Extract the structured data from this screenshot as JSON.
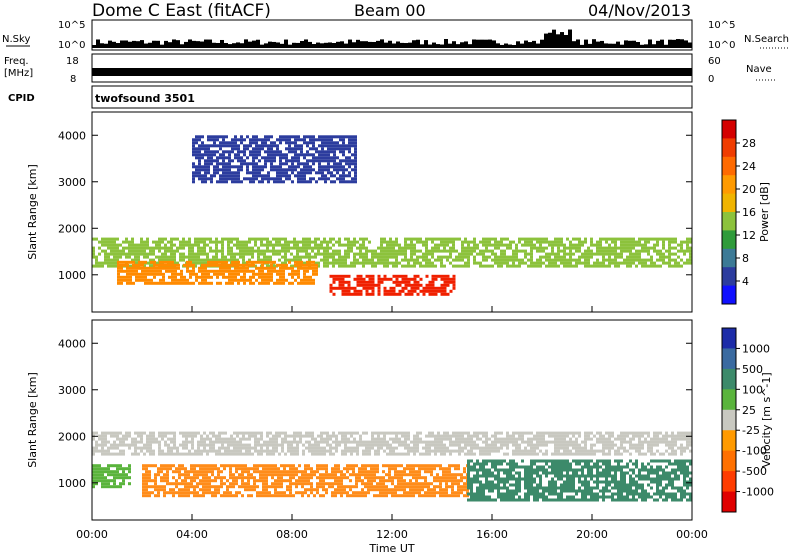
{
  "header": {
    "station": "Dome C East (fitACF)",
    "beam": "Beam 00",
    "date": "04/Nov/2013"
  },
  "panels": {
    "nsky": {
      "label": "N.Sky",
      "ticks": [
        "10^5",
        "10^0"
      ],
      "right_label": "N.Search",
      "right_ticks": [
        "10^5",
        "10^0"
      ]
    },
    "freq": {
      "label": "Freq.",
      "unit": "[MHz]",
      "ticks": [
        "18",
        "8"
      ],
      "right_label": "Nave",
      "right_ticks": [
        "60",
        "0"
      ]
    },
    "cpid": {
      "label": "CPID",
      "text": "twofsound 3501"
    }
  },
  "chart_data": [
    {
      "type": "heatmap",
      "title": "",
      "xlabel": "",
      "ylabel": "Slant Range [km]",
      "xlim": [
        "00:00",
        "24:00"
      ],
      "ylim": [
        200,
        4500
      ],
      "yticks": [
        1000,
        2000,
        3000,
        4000
      ],
      "colorbar": {
        "label": "Power [dB]",
        "ticks": [
          "28",
          "24",
          "20",
          "16",
          "12",
          "8",
          "4"
        ],
        "colors": [
          "#d40000",
          "#f03c00",
          "#ff6a00",
          "#ff9a00",
          "#f0b400",
          "#8cc23c",
          "#2f9b3a",
          "#3c7a96",
          "#2c3c9e",
          "#1010ff"
        ]
      },
      "echo_bands": [
        {
          "range_km": [
            600,
            1000
          ],
          "time_h": [
            9.5,
            14.5
          ],
          "value": 28,
          "color": "#f02000"
        },
        {
          "range_km": [
            1200,
            1800
          ],
          "time_h": [
            0,
            24
          ],
          "value": 14,
          "color": "#8cc23c"
        },
        {
          "range_km": [
            800,
            1300
          ],
          "time_h": [
            1,
            9
          ],
          "value": 20,
          "color": "#ff8a00"
        },
        {
          "range_km": [
            3000,
            4000
          ],
          "time_h": [
            4,
            10.5
          ],
          "value": 8,
          "color": "#2c3c9e"
        }
      ]
    },
    {
      "type": "heatmap",
      "title": "",
      "xlabel": "Time UT",
      "ylabel": "Slant Range [km]",
      "xlim": [
        "00:00",
        "24:00"
      ],
      "xticks": [
        "00:00",
        "04:00",
        "08:00",
        "12:00",
        "16:00",
        "20:00",
        "00:00"
      ],
      "ylim": [
        200,
        4500
      ],
      "yticks": [
        1000,
        2000,
        3000,
        4000
      ],
      "colorbar": {
        "label": "Velocity [m s^-1]",
        "ticks": [
          "1000",
          "500",
          "100",
          "25",
          "-25",
          "-100",
          "-500",
          "-1000"
        ],
        "colors": [
          "#1c2ca8",
          "#3a6aa0",
          "#3c8a6a",
          "#5ab43c",
          "#c8c8c0",
          "#ff9a00",
          "#ff7000",
          "#ff3c00",
          "#e00000"
        ]
      },
      "echo_bands": [
        {
          "range_km": [
            700,
            1400
          ],
          "time_h": [
            2,
            15
          ],
          "value": -250,
          "color": "#ff8c1a"
        },
        {
          "range_km": [
            1600,
            2100
          ],
          "time_h": [
            0,
            24
          ],
          "value": 0,
          "color": "#c8c8c0"
        },
        {
          "range_km": [
            600,
            1500
          ],
          "time_h": [
            15,
            24
          ],
          "value": 300,
          "color": "#3c8a6a"
        },
        {
          "range_km": [
            900,
            1400
          ],
          "time_h": [
            0,
            1.5
          ],
          "value": 50,
          "color": "#5ab43c"
        }
      ]
    }
  ]
}
